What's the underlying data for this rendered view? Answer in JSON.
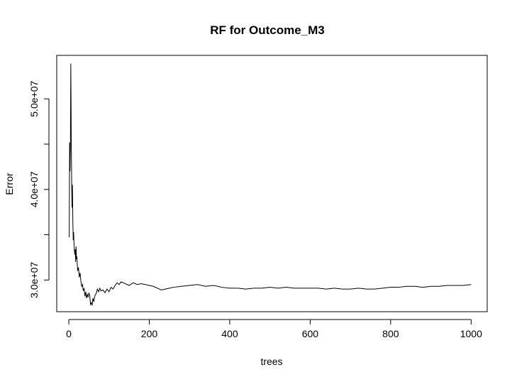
{
  "chart_data": {
    "type": "line",
    "title": "RF for Outcome_M3",
    "xlabel": "trees",
    "ylabel": "Error",
    "xlim": [
      -30,
      1040
    ],
    "ylim": [
      26500000,
      54800000
    ],
    "x_ticks": [
      0,
      200,
      400,
      600,
      800,
      1000
    ],
    "x_tick_labels": [
      "0",
      "200",
      "400",
      "600",
      "800",
      "1000"
    ],
    "y_ticks": [
      30000000,
      40000000,
      50000000
    ],
    "y_tick_labels": [
      "3.0e+07",
      "4.0e+07",
      "5.0e+07"
    ],
    "y_minor_ticks": [
      35000000,
      45000000
    ],
    "grid": false,
    "series": [
      {
        "color": "#000000",
        "x": [
          1,
          2,
          3,
          4,
          5,
          6,
          7,
          8,
          9,
          10,
          11,
          12,
          13,
          14,
          15,
          16,
          17,
          18,
          19,
          20,
          22,
          24,
          26,
          28,
          30,
          32,
          34,
          36,
          38,
          40,
          42,
          44,
          46,
          48,
          50,
          52,
          54,
          56,
          58,
          60,
          62,
          65,
          68,
          71,
          74,
          77,
          80,
          85,
          90,
          95,
          100,
          105,
          110,
          115,
          120,
          125,
          130,
          140,
          150,
          160,
          170,
          180,
          190,
          200,
          210,
          220,
          230,
          240,
          250,
          260,
          280,
          300,
          320,
          340,
          360,
          380,
          400,
          420,
          440,
          460,
          480,
          500,
          520,
          540,
          560,
          580,
          600,
          620,
          640,
          660,
          680,
          700,
          720,
          740,
          760,
          780,
          800,
          820,
          840,
          860,
          880,
          900,
          920,
          940,
          960,
          980,
          1000
        ],
        "values": [
          34700000,
          45200000,
          42000000,
          45000000,
          53900000,
          46000000,
          41300000,
          38000000,
          40500000,
          36500000,
          34400000,
          35300000,
          34000000,
          33200000,
          32800000,
          33400000,
          32000000,
          33700000,
          32300000,
          32600000,
          31000000,
          31400000,
          30300000,
          30800000,
          29900000,
          29300000,
          29500000,
          28800000,
          29100000,
          28200000,
          28700000,
          28000000,
          28400000,
          28100000,
          28600000,
          28300000,
          27300000,
          27500000,
          27200000,
          28000000,
          27600000,
          28300000,
          28500000,
          29000000,
          28700000,
          29100000,
          28800000,
          28900000,
          28600000,
          29000000,
          28700000,
          29200000,
          29000000,
          29400000,
          29700000,
          29500000,
          29800000,
          29600000,
          29400000,
          29700000,
          29500000,
          29600000,
          29500000,
          29400000,
          29300000,
          29100000,
          28900000,
          29000000,
          29100000,
          29200000,
          29300000,
          29400000,
          29500000,
          29300000,
          29400000,
          29200000,
          29100000,
          29100000,
          29000000,
          29100000,
          29100000,
          29200000,
          29100000,
          29200000,
          29100000,
          29100000,
          29100000,
          29100000,
          29000000,
          29100000,
          29000000,
          29000000,
          29100000,
          29000000,
          29000000,
          29100000,
          29200000,
          29200000,
          29300000,
          29300000,
          29200000,
          29300000,
          29300000,
          29400000,
          29400000,
          29400000,
          29500000
        ]
      }
    ]
  }
}
